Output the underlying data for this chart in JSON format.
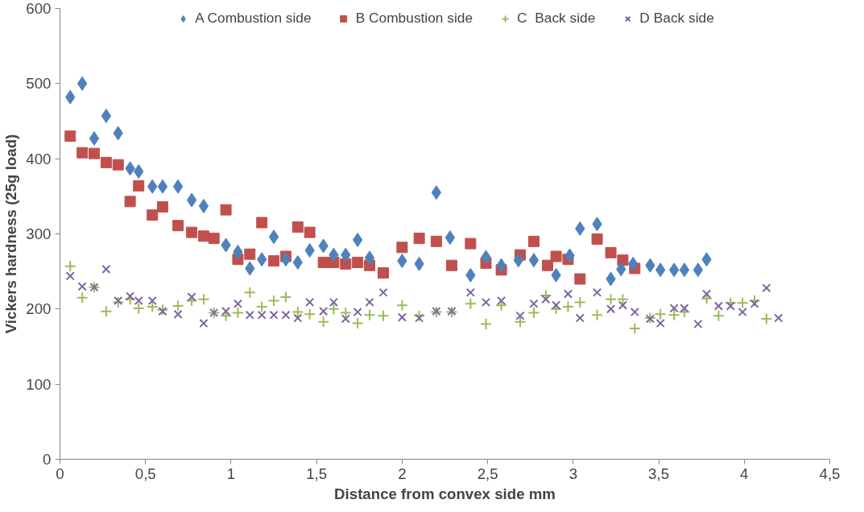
{
  "chart_data": {
    "type": "scatter",
    "xlabel": "Distance from convex side mm",
    "ylabel": "Vickers hardness (25g load)",
    "xlim": [
      0,
      4.5
    ],
    "ylim": [
      0,
      600
    ],
    "xticks": [
      0,
      {
        "value": 0.5,
        "label": "0,5"
      },
      1,
      {
        "value": 1.5,
        "label": "1,5"
      },
      2,
      {
        "value": 2.5,
        "label": "2,5"
      },
      3,
      {
        "value": 3.5,
        "label": "3,5"
      },
      4,
      {
        "value": 4.5,
        "label": "4,5"
      }
    ],
    "yticks": [
      0,
      100,
      200,
      300,
      400,
      500,
      600
    ],
    "grid": false,
    "legend": "top",
    "series": [
      {
        "name": "A Combustion side",
        "color": "#4f81bd",
        "marker": "diamond",
        "x": [
          0.06,
          0.13,
          0.2,
          0.27,
          0.34,
          0.41,
          0.46,
          0.54,
          0.6,
          0.69,
          0.77,
          0.84,
          0.97,
          1.04,
          1.11,
          1.18,
          1.25,
          1.32,
          1.39,
          1.46,
          1.54,
          1.6,
          1.67,
          1.74,
          1.81,
          2.0,
          2.1,
          2.2,
          2.28,
          2.4,
          2.49,
          2.58,
          2.68,
          2.77,
          2.9,
          2.98,
          3.04,
          3.14,
          3.22,
          3.28,
          3.35,
          3.45,
          3.51,
          3.59,
          3.65,
          3.73,
          3.78
        ],
        "values": [
          482,
          500,
          427,
          457,
          434,
          387,
          383,
          363,
          363,
          363,
          345,
          337,
          285,
          276,
          254,
          266,
          296,
          266,
          262,
          278,
          284,
          272,
          272,
          292,
          268,
          264,
          260,
          355,
          295,
          245,
          269,
          258,
          265,
          265,
          245,
          271,
          307,
          313,
          240,
          253,
          260,
          258,
          252,
          252,
          252,
          252,
          266
        ]
      },
      {
        "name": "B Combustion side",
        "color": "#c0504d",
        "marker": "square",
        "x": [
          0.06,
          0.13,
          0.2,
          0.27,
          0.34,
          0.41,
          0.46,
          0.54,
          0.6,
          0.69,
          0.77,
          0.84,
          0.9,
          0.97,
          1.04,
          1.11,
          1.18,
          1.25,
          1.32,
          1.39,
          1.46,
          1.54,
          1.6,
          1.67,
          1.74,
          1.81,
          1.89,
          2.0,
          2.1,
          2.2,
          2.29,
          2.4,
          2.49,
          2.58,
          2.69,
          2.77,
          2.85,
          2.9,
          2.97,
          3.04,
          3.14,
          3.22,
          3.29,
          3.36
        ],
        "values": [
          430,
          408,
          407,
          395,
          392,
          343,
          364,
          325,
          336,
          311,
          302,
          297,
          294,
          332,
          266,
          273,
          315,
          264,
          270,
          309,
          302,
          262,
          262,
          260,
          262,
          258,
          248,
          282,
          294,
          290,
          258,
          287,
          261,
          252,
          272,
          290,
          258,
          270,
          266,
          240,
          293,
          275,
          265,
          254
        ]
      },
      {
        "name": "C  Back side",
        "color": "#9bbb59",
        "marker": "cross",
        "x": [
          0.06,
          0.13,
          0.2,
          0.27,
          0.34,
          0.41,
          0.46,
          0.54,
          0.6,
          0.69,
          0.77,
          0.84,
          0.9,
          0.97,
          1.04,
          1.11,
          1.18,
          1.25,
          1.32,
          1.39,
          1.46,
          1.54,
          1.6,
          1.67,
          1.74,
          1.81,
          1.89,
          2.0,
          2.1,
          2.2,
          2.29,
          2.4,
          2.49,
          2.58,
          2.69,
          2.77,
          2.84,
          2.9,
          2.97,
          3.04,
          3.14,
          3.22,
          3.29,
          3.36,
          3.45,
          3.51,
          3.59,
          3.65,
          3.78,
          3.85,
          3.92,
          3.99,
          4.06,
          4.13
        ],
        "values": [
          257,
          215,
          229,
          197,
          209,
          213,
          201,
          203,
          199,
          204,
          211,
          213,
          195,
          191,
          195,
          222,
          203,
          211,
          216,
          196,
          193,
          183,
          200,
          195,
          181,
          192,
          191,
          205,
          191,
          196,
          196,
          207,
          180,
          205,
          183,
          195,
          218,
          200,
          203,
          209,
          192,
          213,
          213,
          174,
          188,
          193,
          192,
          196,
          214,
          191,
          208,
          208,
          211,
          187
        ]
      },
      {
        "name": "D Back side",
        "color": "#8064a2",
        "marker": "x",
        "x": [
          0.06,
          0.13,
          0.2,
          0.27,
          0.34,
          0.41,
          0.46,
          0.54,
          0.6,
          0.69,
          0.77,
          0.84,
          0.9,
          0.97,
          1.04,
          1.11,
          1.18,
          1.25,
          1.32,
          1.39,
          1.46,
          1.54,
          1.6,
          1.67,
          1.74,
          1.81,
          1.89,
          2.0,
          2.1,
          2.2,
          2.29,
          2.4,
          2.49,
          2.58,
          2.69,
          2.77,
          2.84,
          2.9,
          2.97,
          3.04,
          3.14,
          3.22,
          3.29,
          3.36,
          3.45,
          3.51,
          3.59,
          3.65,
          3.73,
          3.78,
          3.85,
          3.92,
          3.99,
          4.06,
          4.13,
          4.2
        ],
        "values": [
          244,
          230,
          229,
          253,
          211,
          217,
          211,
          211,
          197,
          193,
          216,
          181,
          195,
          197,
          207,
          192,
          192,
          192,
          192,
          188,
          209,
          197,
          209,
          187,
          196,
          209,
          222,
          189,
          188,
          197,
          197,
          222,
          209,
          211,
          191,
          207,
          213,
          205,
          220,
          188,
          222,
          200,
          205,
          196,
          187,
          181,
          201,
          201,
          180,
          220,
          204,
          204,
          196,
          207,
          228,
          188
        ]
      }
    ]
  }
}
